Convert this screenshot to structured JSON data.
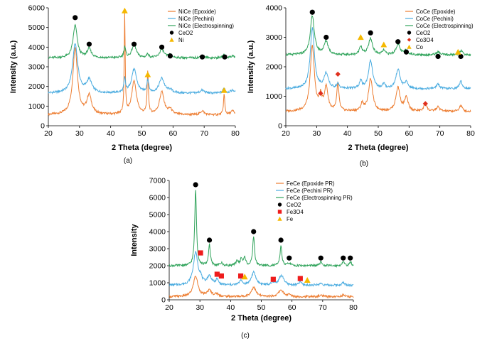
{
  "panels": [
    "(a)",
    "(b)",
    "(c)"
  ],
  "chart_data": [
    {
      "type": "line",
      "panel_label": "(a)",
      "xlabel": "2 Theta (degree)",
      "ylabel": "Intensity (a.u.)",
      "xlim": [
        20,
        80
      ],
      "ylim": [
        0,
        6000
      ],
      "xticks": [
        20,
        30,
        40,
        50,
        60,
        70,
        80
      ],
      "yticks": [
        0,
        1000,
        2000,
        3000,
        4000,
        5000,
        6000
      ],
      "series": [
        {
          "name": "NiCe (Epoxide)",
          "color": "#ED7D31",
          "baseline": 550,
          "peaks": [
            [
              28.6,
              3400,
              0.9
            ],
            [
              33.1,
              950,
              0.9
            ],
            [
              44.5,
              5100,
              0.18
            ],
            [
              47.5,
              1700,
              0.9
            ],
            [
              51.9,
              2100,
              0.25
            ],
            [
              56.4,
              1150,
              0.9
            ],
            [
              59.1,
              250,
              0.7
            ],
            [
              69.4,
              200,
              0.7
            ],
            [
              76.4,
              1050,
              0.25
            ],
            [
              79.1,
              200,
              0.7
            ]
          ]
        },
        {
          "name": "NiCe (Pechini)",
          "color": "#4BACE0",
          "baseline": 1650,
          "peaks": [
            [
              28.6,
              2500,
              1.0
            ],
            [
              33.1,
              650,
              1.0
            ],
            [
              44.5,
              700,
              0.3
            ],
            [
              47.5,
              1200,
              1.0
            ],
            [
              51.9,
              650,
              0.35
            ],
            [
              56.4,
              750,
              1.0
            ],
            [
              59.1,
              150,
              0.8
            ],
            [
              69.4,
              150,
              0.8
            ],
            [
              76.4,
              250,
              0.5
            ],
            [
              79.1,
              150,
              0.8
            ]
          ]
        },
        {
          "name": "NiCe (Electrospinning)",
          "color": "#2FA35A",
          "baseline": 3450,
          "peaks": [
            [
              28.6,
              1650,
              0.8
            ],
            [
              33.1,
              450,
              0.8
            ],
            [
              44.5,
              550,
              0.35
            ],
            [
              47.5,
              700,
              0.8
            ],
            [
              51.9,
              200,
              0.4
            ],
            [
              56.4,
              450,
              0.8
            ],
            [
              59.1,
              150,
              0.7
            ],
            [
              69.4,
              100,
              0.7
            ],
            [
              76.4,
              150,
              0.5
            ],
            [
              79.1,
              100,
              0.7
            ]
          ]
        }
      ],
      "markers": [
        {
          "name": "CeO2",
          "shape": "circle",
          "color": "#000000",
          "points": [
            [
              28.6,
              5500
            ],
            [
              33.1,
              4150
            ],
            [
              47.5,
              4150
            ],
            [
              56.4,
              4000
            ],
            [
              59.1,
              3550
            ],
            [
              69.4,
              3500
            ],
            [
              76.6,
              3500
            ]
          ]
        },
        {
          "name": "Ni",
          "shape": "triangle",
          "color": "#F5B800",
          "points": [
            [
              44.5,
              5850
            ],
            [
              51.9,
              2600
            ],
            [
              76.4,
              1800
            ]
          ]
        }
      ],
      "legend": [
        "NiCe (Epoxide)",
        "NiCe (Pechini)",
        "NiCe (Electrospinning)",
        "CeO2",
        "Ni"
      ],
      "legend_position": "top-right"
    },
    {
      "type": "line",
      "panel_label": "(b)",
      "xlabel": "2 Theta (degree)",
      "ylabel": "Intensity (a.u.)",
      "xlim": [
        20,
        80
      ],
      "ylim": [
        0,
        4000
      ],
      "xticks": [
        20,
        30,
        40,
        50,
        60,
        70,
        80
      ],
      "yticks": [
        0,
        1000,
        2000,
        3000,
        4000
      ],
      "series": [
        {
          "name": "CoCe (Epoxide)",
          "color": "#ED7D31",
          "baseline": 480,
          "peaks": [
            [
              28.6,
              2200,
              0.8
            ],
            [
              31.3,
              450,
              0.5
            ],
            [
              33.1,
              800,
              0.7
            ],
            [
              36.9,
              950,
              0.4
            ],
            [
              44.8,
              250,
              0.5
            ],
            [
              47.5,
              1100,
              0.8
            ],
            [
              56.4,
              800,
              0.8
            ],
            [
              59.1,
              450,
              0.7
            ],
            [
              65.3,
              300,
              0.5
            ],
            [
              69.4,
              150,
              0.7
            ],
            [
              76.8,
              200,
              0.6
            ]
          ]
        },
        {
          "name": "CoCe (Pechini)",
          "color": "#4BACE0",
          "baseline": 1250,
          "peaks": [
            [
              28.6,
              2050,
              0.8
            ],
            [
              33.1,
              500,
              0.8
            ],
            [
              36.9,
              150,
              0.5
            ],
            [
              44.3,
              250,
              0.5
            ],
            [
              47.5,
              950,
              0.8
            ],
            [
              51.8,
              150,
              0.5
            ],
            [
              56.4,
              650,
              0.8
            ],
            [
              59.1,
              200,
              0.7
            ],
            [
              69.4,
              150,
              0.7
            ],
            [
              76.8,
              250,
              0.6
            ]
          ]
        },
        {
          "name": "CoCe (Electrospinning)",
          "color": "#2FA35A",
          "baseline": 2400,
          "peaks": [
            [
              28.6,
              1300,
              0.8
            ],
            [
              33.1,
              450,
              0.8
            ],
            [
              44.3,
              300,
              0.5
            ],
            [
              47.5,
              550,
              0.8
            ],
            [
              51.8,
              150,
              0.5
            ],
            [
              56.4,
              350,
              0.8
            ],
            [
              59.1,
              150,
              0.7
            ],
            [
              69.4,
              100,
              0.7
            ],
            [
              76.8,
              150,
              0.6
            ]
          ]
        }
      ],
      "markers": [
        {
          "name": "CeO2",
          "shape": "circle",
          "color": "#000000",
          "points": [
            [
              28.6,
              3850
            ],
            [
              33.1,
              3000
            ],
            [
              47.5,
              3150
            ],
            [
              56.4,
              2850
            ],
            [
              59.1,
              2500
            ],
            [
              69.4,
              2350
            ],
            [
              76.8,
              2350
            ]
          ]
        },
        {
          "name": "Co3O4",
          "shape": "diamond",
          "color": "#E0301E",
          "points": [
            [
              31.3,
              1100
            ],
            [
              36.9,
              1750
            ],
            [
              65.3,
              750
            ]
          ]
        },
        {
          "name": "Co",
          "shape": "triangle",
          "color": "#F5B800",
          "points": [
            [
              44.3,
              3000
            ],
            [
              51.8,
              2750
            ],
            [
              75.9,
              2500
            ]
          ]
        }
      ],
      "legend": [
        "CoCe (Epoxide)",
        "CoCe (Pechini)",
        "CoCe (Electrospinning)",
        "CeO2",
        "Co3O4",
        "Co"
      ],
      "legend_position": "top-right"
    },
    {
      "type": "line",
      "panel_label": "(c)",
      "xlabel": "2 Theta (degree)",
      "ylabel": "Intensity",
      "xlim": [
        20,
        80
      ],
      "ylim": [
        0,
        7000
      ],
      "xticks": [
        20,
        30,
        40,
        50,
        60,
        70,
        80
      ],
      "yticks": [
        0,
        1000,
        2000,
        3000,
        4000,
        5000,
        6000,
        7000
      ],
      "series": [
        {
          "name": "FeCe (Epoxide PR)",
          "color": "#ED7D31",
          "baseline": 180,
          "peaks": [
            [
              28.6,
              1200,
              0.9
            ],
            [
              33.1,
              350,
              0.9
            ],
            [
              35.5,
              150,
              0.6
            ],
            [
              47.5,
              550,
              0.9
            ],
            [
              56.4,
              400,
              0.9
            ],
            [
              59.1,
              100,
              0.7
            ],
            [
              69.4,
              80,
              0.7
            ],
            [
              76.7,
              100,
              0.6
            ]
          ]
        },
        {
          "name": "FeCe (Pechini PR)",
          "color": "#4BACE0",
          "baseline": 850,
          "peaks": [
            [
              28.6,
              1900,
              0.9
            ],
            [
              30.2,
              300,
              0.5
            ],
            [
              33.1,
              500,
              0.9
            ],
            [
              35.6,
              300,
              0.5
            ],
            [
              43.3,
              300,
              0.5
            ],
            [
              47.5,
              750,
              0.9
            ],
            [
              53.9,
              150,
              0.5
            ],
            [
              56.4,
              500,
              0.9
            ],
            [
              57.2,
              150,
              0.5
            ],
            [
              62.7,
              200,
              0.5
            ],
            [
              69.4,
              100,
              0.7
            ],
            [
              76.7,
              150,
              0.6
            ]
          ]
        },
        {
          "name": "FeCe (Electrospinning PR)",
          "color": "#2FA35A",
          "baseline": 2000,
          "peaks": [
            [
              28.6,
              4450,
              0.35
            ],
            [
              33.1,
              1250,
              0.35
            ],
            [
              37.0,
              150,
              0.5
            ],
            [
              42.1,
              300,
              0.4
            ],
            [
              43.5,
              400,
              0.4
            ],
            [
              44.6,
              450,
              0.4
            ],
            [
              47.5,
              1750,
              0.35
            ],
            [
              56.4,
              1200,
              0.35
            ],
            [
              59.1,
              150,
              0.5
            ],
            [
              69.4,
              200,
              0.5
            ],
            [
              76.7,
              250,
              0.4
            ],
            [
              79.1,
              200,
              0.4
            ]
          ]
        }
      ],
      "markers": [
        {
          "name": "CeO2",
          "shape": "circle",
          "color": "#000000",
          "points": [
            [
              28.6,
              6750
            ],
            [
              33.1,
              3500
            ],
            [
              47.5,
              4000
            ],
            [
              56.4,
              3500
            ],
            [
              59.1,
              2450
            ],
            [
              69.4,
              2450
            ],
            [
              76.7,
              2450
            ],
            [
              79.0,
              2450
            ]
          ]
        },
        {
          "name": "Fe3O4",
          "shape": "square",
          "color": "#EE1C1C",
          "points": [
            [
              30.2,
              2750
            ],
            [
              35.6,
              1500
            ],
            [
              37.0,
              1400
            ],
            [
              43.3,
              1400
            ],
            [
              53.9,
              1200
            ],
            [
              62.7,
              1250
            ]
          ]
        },
        {
          "name": "Fe",
          "shape": "triangle",
          "color": "#F5B800",
          "points": [
            [
              44.6,
              1350
            ],
            [
              65.0,
              1150
            ]
          ]
        }
      ],
      "legend": [
        "FeCe (Epoxide PR)",
        "FeCe (Pechini PR)",
        "FeCe (Electrospinning PR)",
        "CeO2",
        "Fe3O4",
        "Fe"
      ],
      "legend_position": "top-left"
    }
  ]
}
